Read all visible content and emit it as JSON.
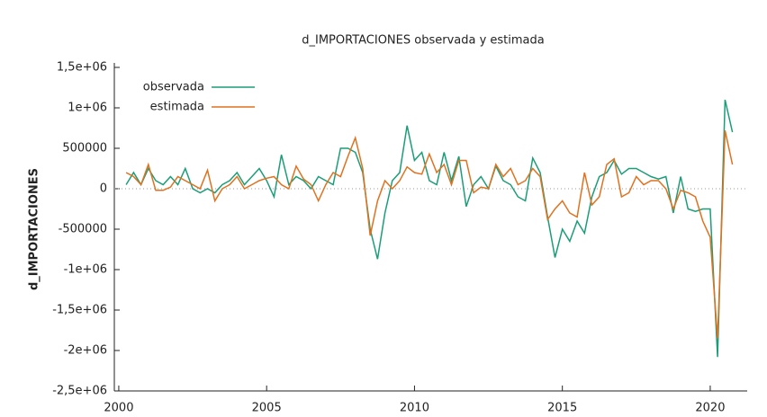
{
  "chart_data": {
    "type": "line",
    "title": "d_IMPORTACIONES observada y estimada",
    "y_label": "d_IMPORTACIONES",
    "x": [
      2000.25,
      2000.5,
      2000.75,
      2001,
      2001.25,
      2001.5,
      2001.75,
      2002,
      2002.25,
      2002.5,
      2002.75,
      2003,
      2003.25,
      2003.5,
      2003.75,
      2004,
      2004.25,
      2004.5,
      2004.75,
      2005,
      2005.25,
      2005.5,
      2005.75,
      2006,
      2006.25,
      2006.5,
      2006.75,
      2007,
      2007.25,
      2007.5,
      2007.75,
      2008,
      2008.25,
      2008.5,
      2008.75,
      2009,
      2009.25,
      2009.5,
      2009.75,
      2010,
      2010.25,
      2010.5,
      2010.75,
      2011,
      2011.25,
      2011.5,
      2011.75,
      2012,
      2012.25,
      2012.5,
      2012.75,
      2013,
      2013.25,
      2013.5,
      2013.75,
      2014,
      2014.25,
      2014.5,
      2014.75,
      2015,
      2015.25,
      2015.5,
      2015.75,
      2016,
      2016.25,
      2016.5,
      2016.75,
      2017,
      2017.25,
      2017.5,
      2017.75,
      2018,
      2018.25,
      2018.5,
      2018.75,
      2019,
      2019.25,
      2019.5,
      2019.75,
      2020,
      2020.25,
      2020.5,
      2020.75
    ],
    "series": [
      {
        "name": "observada",
        "color": "#1b9e77",
        "values": [
          50000,
          200000,
          50000,
          250000,
          100000,
          50000,
          150000,
          50000,
          250000,
          0,
          -50000,
          0,
          -50000,
          50000,
          100000,
          200000,
          50000,
          150000,
          250000,
          100000,
          -100000,
          420000,
          50000,
          150000,
          100000,
          0,
          150000,
          100000,
          50000,
          500000,
          500000,
          450000,
          200000,
          -500000,
          -870000,
          -300000,
          100000,
          200000,
          780000,
          350000,
          450000,
          100000,
          50000,
          450000,
          100000,
          400000,
          -220000,
          50000,
          150000,
          0,
          280000,
          100000,
          50000,
          -100000,
          -150000,
          380000,
          200000,
          -350000,
          -850000,
          -500000,
          -650000,
          -400000,
          -550000,
          -100000,
          150000,
          200000,
          350000,
          180000,
          250000,
          250000,
          200000,
          150000,
          120000,
          150000,
          -300000,
          150000,
          -250000,
          -280000,
          -250000,
          -250000,
          -2080000,
          1100000,
          700000
        ]
      },
      {
        "name": "estimada",
        "color": "#e0711f",
        "values": [
          200000,
          150000,
          50000,
          300000,
          -20000,
          -20000,
          20000,
          150000,
          100000,
          50000,
          0,
          230000,
          -150000,
          0,
          50000,
          150000,
          0,
          50000,
          100000,
          130000,
          150000,
          50000,
          0,
          280000,
          120000,
          50000,
          -150000,
          50000,
          200000,
          150000,
          400000,
          630000,
          250000,
          -580000,
          -150000,
          100000,
          0,
          100000,
          270000,
          200000,
          180000,
          430000,
          200000,
          300000,
          50000,
          350000,
          350000,
          -50000,
          20000,
          0,
          300000,
          150000,
          250000,
          50000,
          100000,
          250000,
          150000,
          -380000,
          -250000,
          -150000,
          -300000,
          -350000,
          200000,
          -200000,
          -100000,
          300000,
          370000,
          -100000,
          -50000,
          150000,
          50000,
          100000,
          100000,
          0,
          -250000,
          -20000,
          -50000,
          -100000,
          -400000,
          -600000,
          -1850000,
          720000,
          300000
        ]
      }
    ],
    "xlim": [
      1999.85,
      2021.25
    ],
    "xticks": [
      2000,
      2005,
      2010,
      2015,
      2020
    ],
    "ylim": [
      -2500000,
      1500000
    ],
    "yticks": [
      {
        "value": -2500000,
        "label": "-2,5e+06"
      },
      {
        "value": -2000000,
        "label": "-2e+06"
      },
      {
        "value": -1500000,
        "label": "-1,5e+06"
      },
      {
        "value": -1000000,
        "label": "-1e+06"
      },
      -500000,
      0,
      500000,
      {
        "value": 1000000,
        "label": "1e+06"
      },
      {
        "value": 1500000,
        "label": "1,5e+06"
      }
    ],
    "zero_line": true,
    "legend": "top-left"
  }
}
